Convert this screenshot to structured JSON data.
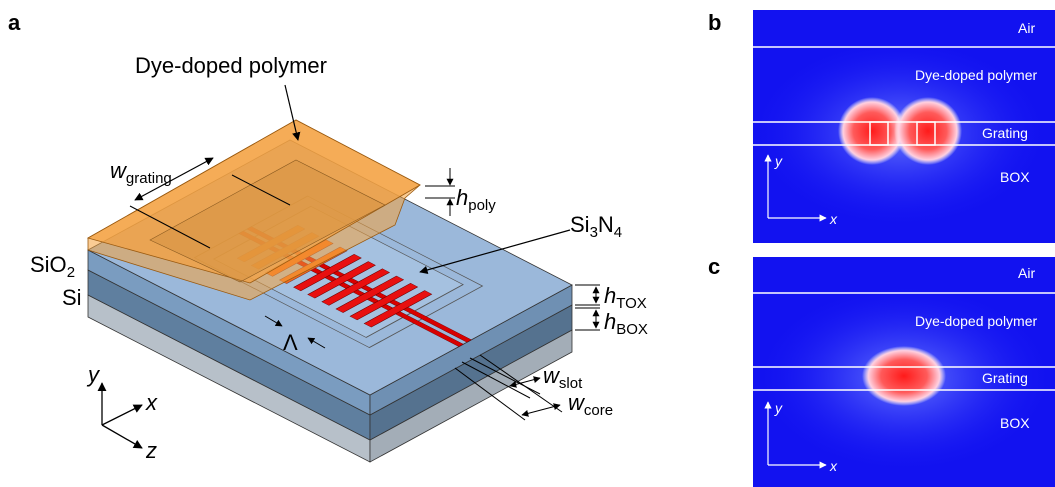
{
  "panel_a": {
    "label": "a",
    "polymer_label": "Dye-doped polymer",
    "w_grating": {
      "symbol": "w",
      "sub": "grating"
    },
    "h_poly": {
      "symbol": "h",
      "sub": "poly"
    },
    "si3n4": {
      "parts": [
        "Si",
        "3",
        "N",
        "4"
      ]
    },
    "sio2": {
      "parts": [
        "SiO",
        "2"
      ]
    },
    "si": "Si",
    "h_tox": {
      "symbol": "h",
      "sub": "TOX"
    },
    "h_box": {
      "symbol": "h",
      "sub": "BOX"
    },
    "period": "Λ",
    "w_slot": {
      "symbol": "w",
      "sub": "slot"
    },
    "w_core": {
      "symbol": "w",
      "sub": "core"
    },
    "axes": {
      "y": "y",
      "x": "x",
      "z": "z"
    }
  },
  "panel_b": {
    "label": "b",
    "layers": [
      "Air",
      "Dye-doped polymer",
      "Grating",
      "BOX"
    ],
    "axes": {
      "y": "y",
      "x": "x"
    }
  },
  "panel_c": {
    "label": "c",
    "layers": [
      "Air",
      "Dye-doped polymer",
      "Grating",
      "BOX"
    ],
    "axes": {
      "y": "y",
      "x": "x"
    }
  }
}
